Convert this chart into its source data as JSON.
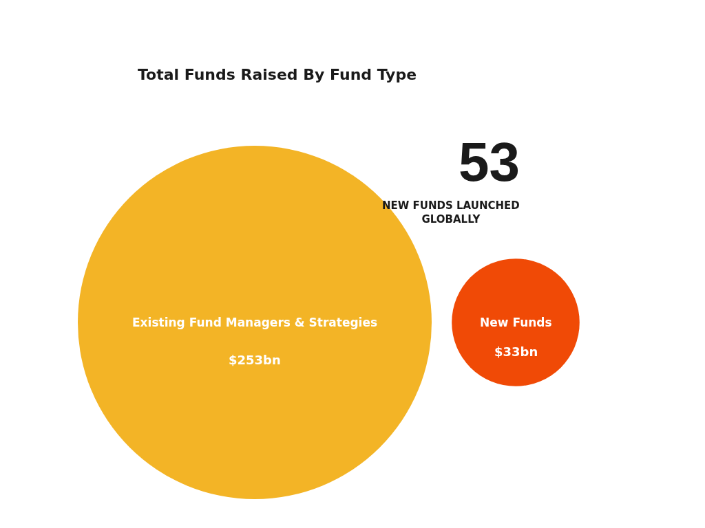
{
  "chart_data": {
    "type": "other",
    "title": "Total Funds Raised By Fund Type",
    "categories": [
      "Existing Fund Managers & Strategies",
      "New Funds"
    ],
    "values": [
      253,
      33
    ],
    "colors": [
      "#f3b426",
      "#f04a06"
    ],
    "value_labels": [
      "$253bn",
      "$33bn"
    ],
    "annotations": [
      "53",
      "NEW FUNDS LAUNCHED GLOBALLY"
    ]
  }
}
